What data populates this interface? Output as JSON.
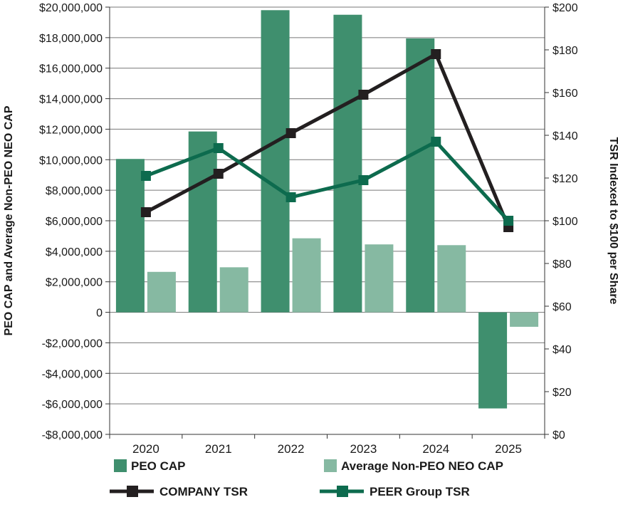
{
  "chart_data": {
    "type": "bar",
    "categories": [
      "2020",
      "2021",
      "2022",
      "2023",
      "2024",
      "2025"
    ],
    "left_axis": {
      "label": "PEO CAP and Average Non-PEO NEO CAP",
      "ylim": [
        -8000000,
        20000000
      ],
      "ticks": [
        20000000,
        18000000,
        16000000,
        14000000,
        12000000,
        10000000,
        8000000,
        6000000,
        4000000,
        2000000,
        0,
        -2000000,
        -4000000,
        -6000000,
        -8000000
      ],
      "tick_labels": [
        "$20,000,000",
        "$18,000,000",
        "$16,000,000",
        "$14,000,000",
        "$12,000,000",
        "$10,000,000",
        "$8,000,000",
        "$6,000,000",
        "$4,000,000",
        "$2,000,000",
        "0",
        "-$2,000,000",
        "-$4,000,000",
        "-$6,000,000",
        "-$8,000,000"
      ]
    },
    "right_axis": {
      "label": "TSR Indexed to $100 per Share",
      "ylim": [
        0,
        200
      ],
      "ticks": [
        200,
        180,
        160,
        140,
        120,
        100,
        80,
        60,
        40,
        20,
        0
      ],
      "tick_labels": [
        "$200",
        "$180",
        "$160",
        "$140",
        "$120",
        "$100",
        "$80",
        "$60",
        "$40",
        "$20",
        "$0"
      ]
    },
    "bar_series": [
      {
        "name": "PEO CAP",
        "color": "#3f8f6e",
        "values": [
          10050000,
          11850000,
          19800000,
          19500000,
          17950000,
          -6300000
        ]
      },
      {
        "name": "Average Non-PEO NEO CAP",
        "color": "#86b9a2",
        "values": [
          2650000,
          2950000,
          4850000,
          4450000,
          4400000,
          -950000
        ]
      }
    ],
    "line_series": [
      {
        "name": "COMPANY TSR",
        "color": "#231f20",
        "values": [
          104,
          122,
          141,
          159,
          178,
          97
        ]
      },
      {
        "name": "PEER Group TSR",
        "color": "#0d6b4e",
        "values": [
          121,
          134,
          111,
          119,
          137,
          100
        ]
      }
    ],
    "legend": [
      "PEO CAP",
      "Average Non-PEO NEO CAP",
      "COMPANY TSR",
      "PEER Group TSR"
    ],
    "grid": "horizontal",
    "legend_position": "bottom"
  }
}
